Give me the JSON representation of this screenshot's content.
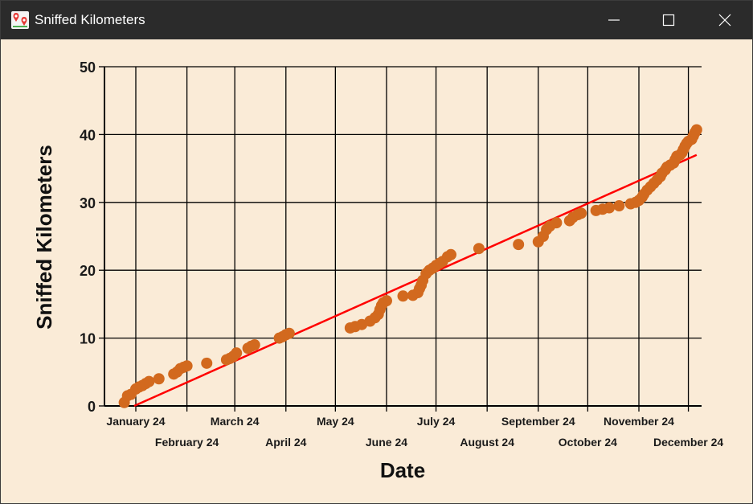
{
  "window": {
    "title": "Sniffed Kilometers",
    "icons": {
      "app": "map-pins-icon",
      "minimize": "minimize-icon",
      "maximize": "maximize-icon",
      "close": "close-icon"
    },
    "colors": {
      "titlebar": "#2b2b2b",
      "background": "#faebd7"
    }
  },
  "chart_data": {
    "type": "scatter",
    "title": "",
    "xlabel": "Date",
    "ylabel": "Sniffed Kilometers",
    "x_ticks": [
      "2024-01-01",
      "2024-02-01",
      "2024-03-01",
      "2024-04-01",
      "2024-05-01",
      "2024-06-01",
      "2024-07-01",
      "2024-08-01",
      "2024-09-01",
      "2024-10-01",
      "2024-11-01",
      "2024-12-01"
    ],
    "x_tick_labels": [
      "January 24",
      "February 24",
      "March 24",
      "April 24",
      "May 24",
      "June 24",
      "July 24",
      "August 24",
      "September 24",
      "October 24",
      "November 24",
      "December 24"
    ],
    "xlim": [
      "2023-12-13",
      "2024-12-09"
    ],
    "y_ticks": [
      0,
      10,
      20,
      30,
      40,
      50
    ],
    "y_tick_labels": [
      "0",
      "10",
      "20",
      "30",
      "40",
      "50"
    ],
    "ylim": [
      0,
      50
    ],
    "grid": true,
    "colors": {
      "points": "#d2691e",
      "trend": "#ff0000",
      "grid": "#000000"
    },
    "series": [
      {
        "kind": "points",
        "points": [
          [
            "2023-12-25",
            0.5
          ],
          [
            "2023-12-27",
            1.5
          ],
          [
            "2023-12-29",
            1.7
          ],
          [
            "2024-01-01",
            2.5
          ],
          [
            "2024-01-03",
            2.8
          ],
          [
            "2024-01-05",
            3.0
          ],
          [
            "2024-01-07",
            3.3
          ],
          [
            "2024-01-09",
            3.6
          ],
          [
            "2024-01-15",
            4.0
          ],
          [
            "2024-01-24",
            4.7
          ],
          [
            "2024-01-26",
            5.0
          ],
          [
            "2024-01-28",
            5.5
          ],
          [
            "2024-01-30",
            5.7
          ],
          [
            "2024-02-01",
            5.9
          ],
          [
            "2024-02-13",
            6.3
          ],
          [
            "2024-02-25",
            6.8
          ],
          [
            "2024-02-27",
            7.0
          ],
          [
            "2024-02-29",
            7.3
          ],
          [
            "2024-03-02",
            7.8
          ],
          [
            "2024-03-09",
            8.5
          ],
          [
            "2024-03-11",
            8.8
          ],
          [
            "2024-03-13",
            9.0
          ],
          [
            "2024-03-28",
            10.0
          ],
          [
            "2024-03-30",
            10.2
          ],
          [
            "2024-04-01",
            10.5
          ],
          [
            "2024-04-03",
            10.7
          ],
          [
            "2024-05-10",
            11.5
          ],
          [
            "2024-05-13",
            11.7
          ],
          [
            "2024-05-17",
            12.0
          ],
          [
            "2024-05-22",
            12.5
          ],
          [
            "2024-05-25",
            13.0
          ],
          [
            "2024-05-27",
            13.5
          ],
          [
            "2024-05-28",
            14.2
          ],
          [
            "2024-05-29",
            14.8
          ],
          [
            "2024-05-30",
            15.2
          ],
          [
            "2024-06-01",
            15.5
          ],
          [
            "2024-06-11",
            16.2
          ],
          [
            "2024-06-17",
            16.3
          ],
          [
            "2024-06-20",
            16.7
          ],
          [
            "2024-06-21",
            17.3
          ],
          [
            "2024-06-22",
            17.8
          ],
          [
            "2024-06-23",
            18.5
          ],
          [
            "2024-06-25",
            19.5
          ],
          [
            "2024-06-27",
            20.0
          ],
          [
            "2024-06-29",
            20.3
          ],
          [
            "2024-07-01",
            20.7
          ],
          [
            "2024-07-03",
            21.0
          ],
          [
            "2024-07-05",
            21.3
          ],
          [
            "2024-07-08",
            22.0
          ],
          [
            "2024-07-10",
            22.3
          ],
          [
            "2024-07-27",
            23.2
          ],
          [
            "2024-08-20",
            23.8
          ],
          [
            "2024-09-01",
            24.2
          ],
          [
            "2024-09-04",
            25.0
          ],
          [
            "2024-09-06",
            26.0
          ],
          [
            "2024-09-08",
            26.5
          ],
          [
            "2024-09-12",
            27.0
          ],
          [
            "2024-09-20",
            27.3
          ],
          [
            "2024-09-22",
            27.8
          ],
          [
            "2024-09-25",
            28.2
          ],
          [
            "2024-09-27",
            28.4
          ],
          [
            "2024-10-06",
            28.8
          ],
          [
            "2024-10-10",
            29.0
          ],
          [
            "2024-10-14",
            29.2
          ],
          [
            "2024-10-20",
            29.5
          ],
          [
            "2024-10-27",
            29.8
          ],
          [
            "2024-10-30",
            30.0
          ],
          [
            "2024-11-01",
            30.3
          ],
          [
            "2024-11-03",
            30.8
          ],
          [
            "2024-11-04",
            31.2
          ],
          [
            "2024-11-06",
            31.8
          ],
          [
            "2024-11-08",
            32.3
          ],
          [
            "2024-11-10",
            32.8
          ],
          [
            "2024-11-12",
            33.3
          ],
          [
            "2024-11-14",
            33.8
          ],
          [
            "2024-11-15",
            34.3
          ],
          [
            "2024-11-17",
            34.8
          ],
          [
            "2024-11-18",
            35.2
          ],
          [
            "2024-11-20",
            35.5
          ],
          [
            "2024-11-22",
            35.8
          ],
          [
            "2024-11-23",
            36.3
          ],
          [
            "2024-11-24",
            36.8
          ],
          [
            "2024-11-26",
            37.0
          ],
          [
            "2024-11-27",
            37.3
          ],
          [
            "2024-11-28",
            37.8
          ],
          [
            "2024-11-29",
            38.3
          ],
          [
            "2024-11-30",
            38.7
          ],
          [
            "2024-12-01",
            39.0
          ],
          [
            "2024-12-03",
            39.3
          ],
          [
            "2024-12-04",
            39.8
          ],
          [
            "2024-12-05",
            40.3
          ],
          [
            "2024-12-06",
            40.7
          ]
        ]
      },
      {
        "kind": "trend-line",
        "points": [
          [
            "2023-12-31",
            0.0
          ],
          [
            "2024-12-06",
            37.0
          ]
        ]
      }
    ]
  }
}
